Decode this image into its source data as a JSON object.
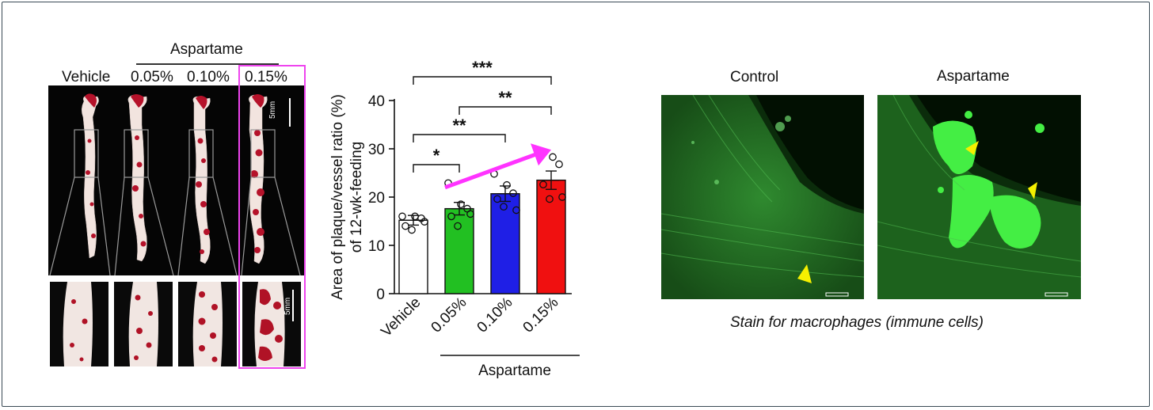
{
  "left_panel": {
    "group_label": "Aspartame",
    "doses": [
      "Vehicle",
      "0.05%",
      "0.10%",
      "0.15%"
    ],
    "scale_bar_top": "5mm",
    "scale_bar_bottom": "5mm"
  },
  "chart_data": {
    "type": "bar",
    "categories": [
      "Vehicle",
      "0.05%",
      "0.10%",
      "0.15%"
    ],
    "values": [
      15.2,
      17.6,
      20.7,
      23.5
    ],
    "errors": [
      1.0,
      1.3,
      1.6,
      1.9
    ],
    "points": [
      [
        16.0,
        16.0,
        15.6,
        14.0,
        13.2,
        14.9
      ],
      [
        22.9,
        18.5,
        17.6,
        16.0,
        14.0,
        16.5
      ],
      [
        24.8,
        22.5,
        20.8,
        19.6,
        18.0,
        17.3
      ],
      [
        29.0,
        28.3,
        26.8,
        22.6,
        19.6,
        20.0
      ]
    ],
    "colors": [
      "#ffffff",
      "#22c022",
      "#1f1fe6",
      "#f01010"
    ],
    "ylabel_line1": "Area of plaque/vessel ratio (%)",
    "ylabel_line2": "of 12-wk-feeding",
    "yticks": [
      0,
      10,
      20,
      30,
      40
    ],
    "ylim": [
      0,
      40
    ],
    "group_label": "Aspartame",
    "significance": [
      {
        "from": 0,
        "to": 1,
        "label": "*"
      },
      {
        "from": 0,
        "to": 2,
        "label": "**"
      },
      {
        "from": 1,
        "to": 3,
        "label": "**"
      },
      {
        "from": 0,
        "to": 3,
        "label": "***"
      }
    ],
    "trend_arrow_color": "#ff33ff"
  },
  "right_panel": {
    "labels": [
      "Control",
      "Aspartame"
    ],
    "caption": "Stain for macrophages (immune cells)",
    "stain_color": "#33e633",
    "arrowhead_color": "#f5f000"
  },
  "highlight_color": "#ee44ee"
}
